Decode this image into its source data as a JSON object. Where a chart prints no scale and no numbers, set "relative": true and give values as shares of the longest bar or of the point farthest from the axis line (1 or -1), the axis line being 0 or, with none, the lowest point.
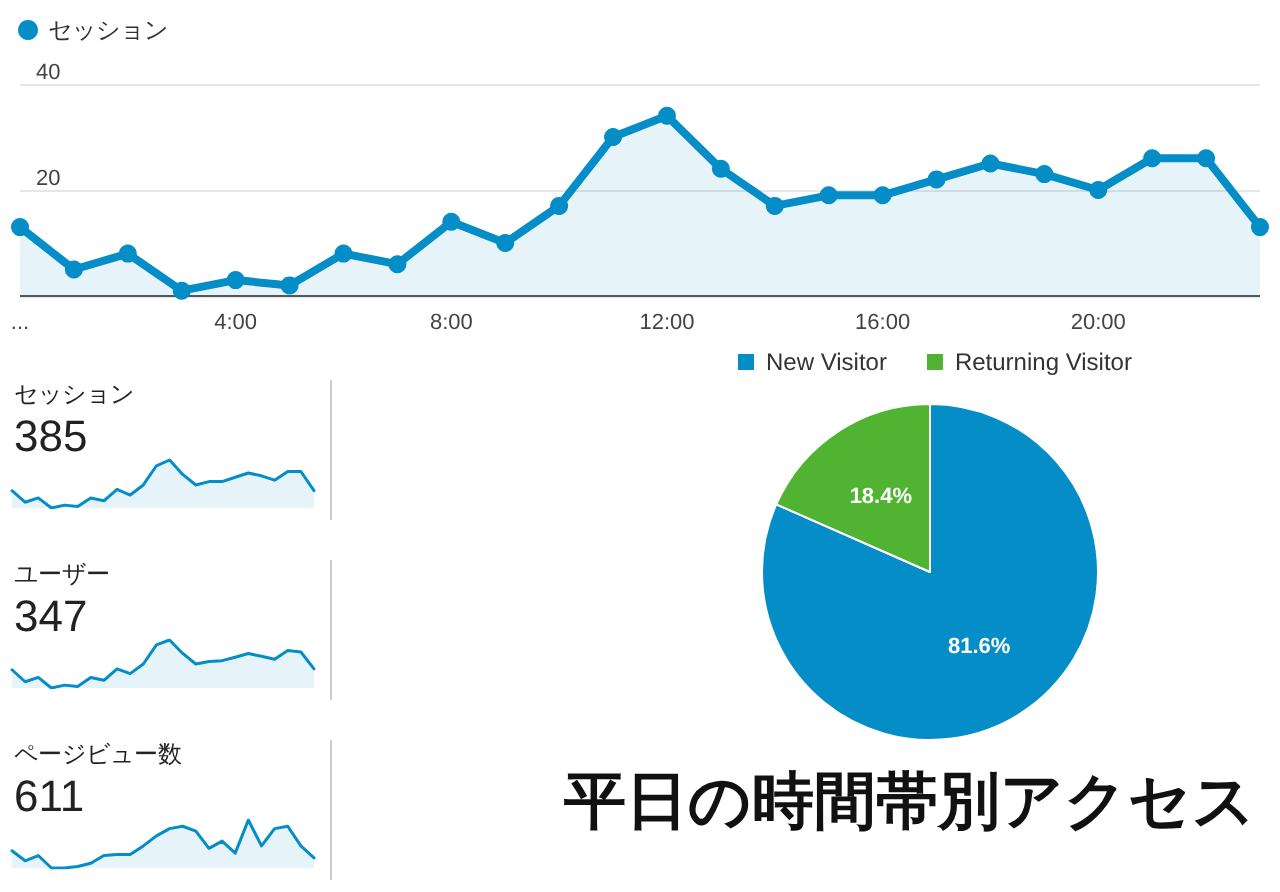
{
  "chart_data": [
    {
      "type": "area",
      "x": [
        0,
        1,
        2,
        3,
        4,
        5,
        6,
        7,
        8,
        9,
        10,
        11,
        12,
        13,
        14,
        15,
        16,
        17,
        18,
        19,
        20,
        21,
        22,
        23
      ],
      "series": [
        {
          "name": "セッション",
          "color": "#058dc7",
          "values": [
            13,
            5,
            8,
            1,
            3,
            2,
            8,
            6,
            14,
            10,
            17,
            30,
            34,
            24,
            17,
            19,
            19,
            22,
            25,
            23,
            20,
            26,
            26,
            13
          ]
        }
      ],
      "xlim": [
        0,
        23
      ],
      "xticks": [
        {
          "value": 0,
          "label": "..."
        },
        {
          "value": 4,
          "label": "4:00"
        },
        {
          "value": 8,
          "label": "8:00"
        },
        {
          "value": 12,
          "label": "12:00"
        },
        {
          "value": 16,
          "label": "16:00"
        },
        {
          "value": 20,
          "label": "20:00"
        }
      ],
      "ylim": [
        0,
        40
      ],
      "yticks": [
        {
          "value": 0,
          "label": null
        },
        20,
        40
      ],
      "grid": "y",
      "legend": "top left",
      "marker": "circle",
      "line_style": "solid"
    },
    {
      "type": "area",
      "title": "セッション",
      "subtitle": "385",
      "relative": true,
      "categories": [
        null,
        null,
        null,
        null,
        null,
        null,
        null,
        null,
        null,
        null,
        null,
        null,
        null,
        null,
        null,
        null,
        null,
        null,
        null,
        null,
        null,
        null,
        null,
        null
      ],
      "series": [
        {
          "color": "#058dc7",
          "values": [
            0.36,
            0.12,
            0.21,
            0,
            0.06,
            0.03,
            0.21,
            0.15,
            0.39,
            0.27,
            0.48,
            0.88,
            1,
            0.7,
            0.48,
            0.55,
            0.55,
            0.64,
            0.73,
            0.67,
            0.58,
            0.76,
            0.76,
            0.36
          ]
        }
      ],
      "marker": "none"
    },
    {
      "type": "area",
      "title": "ユーザー",
      "subtitle": "347",
      "relative": true,
      "categories": [
        null,
        null,
        null,
        null,
        null,
        null,
        null,
        null,
        null,
        null,
        null,
        null,
        null,
        null,
        null,
        null,
        null,
        null,
        null,
        null,
        null,
        null,
        null,
        null
      ],
      "series": [
        {
          "color": "#058dc7",
          "values": [
            0.38,
            0.13,
            0.22,
            0,
            0.06,
            0.03,
            0.22,
            0.16,
            0.4,
            0.3,
            0.5,
            0.9,
            1,
            0.72,
            0.5,
            0.55,
            0.57,
            0.64,
            0.72,
            0.66,
            0.6,
            0.78,
            0.75,
            0.4
          ]
        }
      ],
      "marker": "none"
    },
    {
      "type": "area",
      "title": "ページビュー数",
      "subtitle": "611",
      "relative": true,
      "categories": [
        null,
        null,
        null,
        null,
        null,
        null,
        null,
        null,
        null,
        null,
        null,
        null,
        null,
        null,
        null,
        null,
        null,
        null,
        null,
        null,
        null,
        null,
        null,
        null
      ],
      "series": [
        {
          "color": "#058dc7",
          "values": [
            0.36,
            0.15,
            0.26,
            0,
            0,
            0.03,
            0.1,
            0.26,
            0.28,
            0.28,
            0.46,
            0.67,
            0.82,
            0.87,
            0.77,
            0.41,
            0.56,
            0.31,
            1,
            0.46,
            0.82,
            0.87,
            0.46,
            0.21
          ]
        }
      ],
      "marker": "none"
    },
    {
      "type": "pie",
      "categories": [
        "New Visitor",
        "Returning Visitor"
      ],
      "values": [
        81.6,
        18.4
      ],
      "colors": [
        "#058dc7",
        "#50b432"
      ],
      "value_labels": [
        "81.6%",
        "18.4%"
      ],
      "legend": "top",
      "annotations": [
        "平日の時間帯別アクセス"
      ]
    }
  ]
}
